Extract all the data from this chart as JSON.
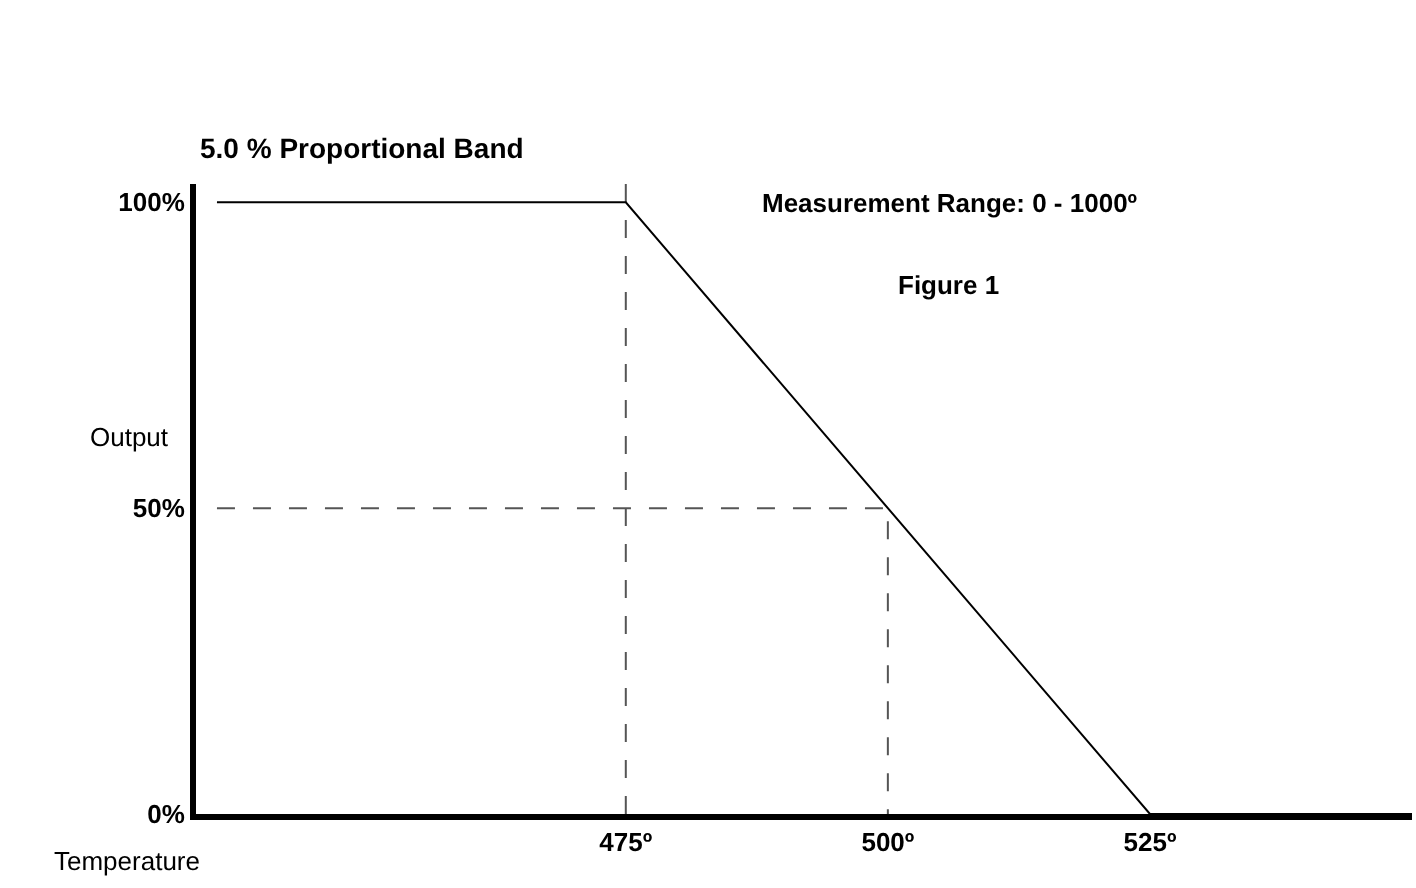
{
  "chart_data": {
    "type": "line",
    "title": "5.0 % Proportional Band",
    "xlabel": "Temperature",
    "ylabel": "Output",
    "annotations": [
      "Measurement Range: 0 - 1000º",
      "Figure 1"
    ],
    "series": [
      {
        "color": "#000000",
        "x": [
          436,
          475,
          525,
          550
        ],
        "values": [
          100,
          100,
          0,
          0
        ],
        "line_style": "solid"
      },
      {
        "color": "#555555",
        "x": [
          436,
          500,
          500
        ],
        "values": [
          50,
          50,
          0
        ],
        "line_style": "dashed"
      }
    ],
    "ref_lines": [
      {
        "axis": "x",
        "value": 475,
        "color": "#555555",
        "line_style": "dashed"
      }
    ],
    "xlim": [
      434,
      550
    ],
    "ylim": [
      0,
      103
    ],
    "xticks": [
      {
        "value": 475,
        "label": "475º"
      },
      {
        "value": 500,
        "label": "500º"
      },
      {
        "value": 525,
        "label": "525º"
      }
    ],
    "yticks": [
      {
        "value": 0,
        "label": "0%"
      },
      {
        "value": 50,
        "label": "50%"
      },
      {
        "value": 100,
        "label": "100%"
      }
    ],
    "grid": false,
    "marker": "none"
  }
}
